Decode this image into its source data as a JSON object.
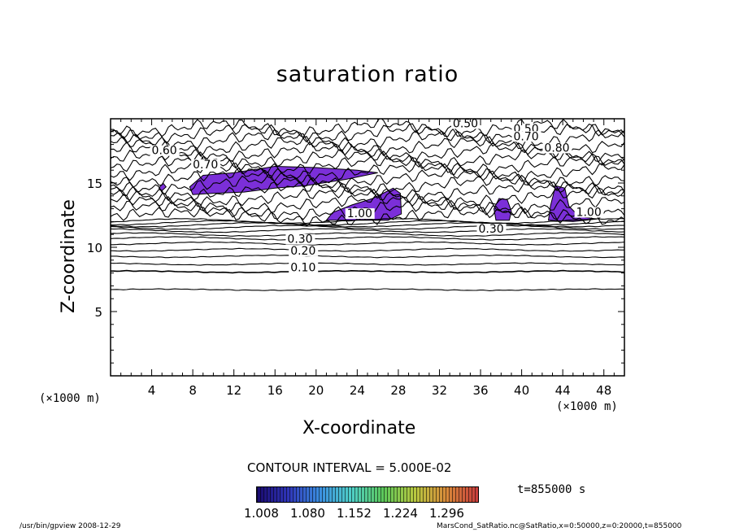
{
  "title": "saturation ratio",
  "chart_data": {
    "type": "contour",
    "title": "saturation ratio",
    "xlabel": "X-coordinate",
    "ylabel": "Z-coordinate",
    "x_unit": "(×1000 m)",
    "xlim": [
      0,
      50
    ],
    "ylim": [
      0,
      20
    ],
    "x_ticks": [
      4,
      8,
      12,
      16,
      20,
      24,
      28,
      32,
      36,
      40,
      44,
      48
    ],
    "y_ticks": [
      5,
      10,
      15
    ],
    "contour_interval": "CONTOUR INTERVAL = 5.000E-02",
    "contour_labels": [
      {
        "text": "0.10",
        "x": 17.5,
        "z": 8.2
      },
      {
        "text": "0.20",
        "x": 17.5,
        "z": 9.5
      },
      {
        "text": "0.30",
        "x": 17.2,
        "z": 10.4
      },
      {
        "text": "0.30",
        "x": 35.8,
        "z": 11.2
      },
      {
        "text": "0.50",
        "x": 33.3,
        "z": 19.4
      },
      {
        "text": "0.50",
        "x": 39.2,
        "z": 19.0
      },
      {
        "text": "0.60",
        "x": 4.0,
        "z": 17.3
      },
      {
        "text": "0.70",
        "x": 8.0,
        "z": 16.2
      },
      {
        "text": "0.70",
        "x": 39.2,
        "z": 18.4
      },
      {
        "text": "0.80",
        "x": 42.2,
        "z": 17.5
      },
      {
        "text": "1.00",
        "x": 23.0,
        "z": 12.4
      },
      {
        "text": "1.00",
        "x": 45.3,
        "z": 12.5
      }
    ],
    "shaded_regions_note": "saturation ratio > 1.0 shaded",
    "colorbar": {
      "ticks": [
        "1.008",
        "1.080",
        "1.152",
        "1.224",
        "1.296"
      ],
      "colors": [
        "#1a0a6e",
        "#2f35b8",
        "#3b8fe0",
        "#4fd0c8",
        "#5cc85a",
        "#b8c840",
        "#d88a3a",
        "#c83c3c"
      ]
    }
  },
  "xunit_left": "(×1000 m)",
  "xunit_right": "(×1000 m)",
  "time": "t=855000 s",
  "footer_left": "/usr/bin/gpview  2008-12-29",
  "footer_right": "MarsCond_SatRatio.nc@SatRatio,x=0:50000,z=0:20000,t=855000",
  "colors": {
    "shade_main": "#7b2fd8",
    "shade_dark": "#3a1a9a",
    "line": "#000000"
  }
}
